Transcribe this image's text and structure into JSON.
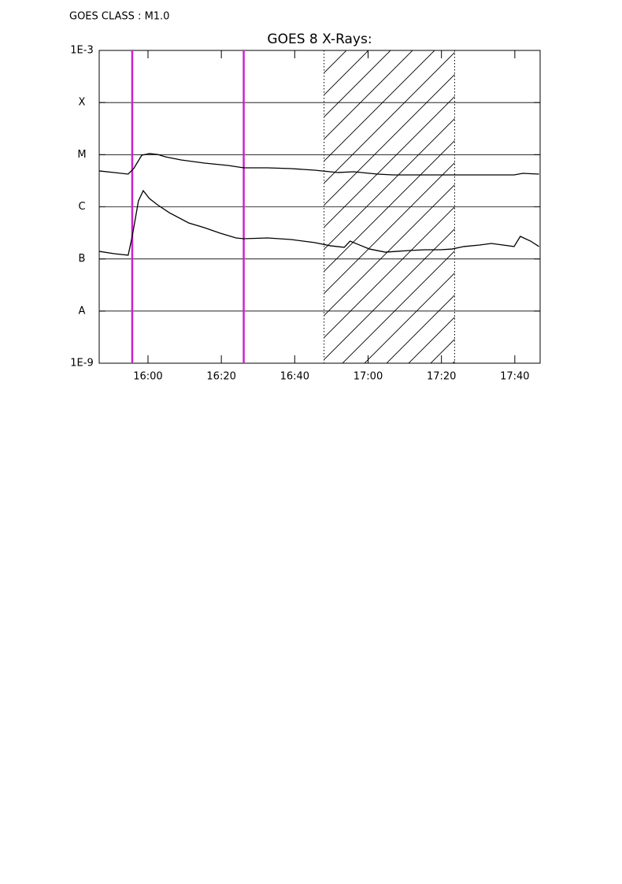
{
  "chart_data": {
    "type": "line",
    "annotation": "GOES CLASS : M1.0",
    "title": "GOES 8 X-Rays:",
    "log_y": true,
    "grid": true,
    "xlim": [
      946.7,
      1066.9
    ],
    "xticks": [
      {
        "value": 960,
        "label": "16:00"
      },
      {
        "value": 980,
        "label": "16:20"
      },
      {
        "value": 1000,
        "label": "16:40"
      },
      {
        "value": 1020,
        "label": "17:00"
      },
      {
        "value": 1040,
        "label": "17:20"
      },
      {
        "value": 1060,
        "label": "17:40"
      }
    ],
    "ylim": [
      1e-09,
      0.001
    ],
    "yticks": [
      {
        "value": 1e-09,
        "label": "1E-9"
      },
      {
        "value": 1e-08,
        "label": "A"
      },
      {
        "value": 1e-07,
        "label": "B"
      },
      {
        "value": 1e-06,
        "label": "C"
      },
      {
        "value": 1e-05,
        "label": "M"
      },
      {
        "value": 0.0001,
        "label": "X"
      },
      {
        "value": 0.001,
        "label": "1E-3"
      }
    ],
    "markers": {
      "color": "#cc22cc",
      "x": [
        955.7,
        986.1
      ]
    },
    "shaded": {
      "x": [
        1008.0,
        1043.6
      ]
    },
    "series": [
      {
        "color": "#000000",
        "x": [
          946.7,
          950.8,
          954.6,
          956.1,
          958.3,
          960.4,
          962.6,
          964.7,
          969.0,
          975.4,
          981.8,
          986.1,
          992.6,
          999.0,
          1005.4,
          1011.8,
          1016.1,
          1022.6,
          1026.8,
          1033.3,
          1039.7,
          1046.1,
          1052.5,
          1059.8,
          1062.2,
          1066.6
        ],
        "values": [
          4.88e-06,
          4.55e-06,
          4.24e-06,
          5.41e-06,
          9.77e-06,
          1.05e-05,
          1.01e-05,
          9.12e-06,
          7.93e-06,
          6.9e-06,
          6.22e-06,
          5.6e-06,
          5.6e-06,
          5.41e-06,
          5.05e-06,
          4.55e-06,
          4.71e-06,
          4.24e-06,
          4.09e-06,
          4.09e-06,
          4.09e-06,
          4.09e-06,
          4.09e-06,
          4.09e-06,
          4.39e-06,
          4.24e-06
        ]
      },
      {
        "color": "#000000",
        "x": [
          946.7,
          950.8,
          954.6,
          955.7,
          957.4,
          958.7,
          960.4,
          962.6,
          965.8,
          971.1,
          975.4,
          979.7,
          984.0,
          986.1,
          992.6,
          999.0,
          1005.4,
          1009.7,
          1013.5,
          1015.1,
          1017.2,
          1020.4,
          1024.7,
          1031.1,
          1035.4,
          1039.7,
          1042.9,
          1046.1,
          1050.4,
          1053.6,
          1056.8,
          1059.8,
          1061.5,
          1064.3,
          1066.6
        ],
        "values": [
          1.4e-07,
          1.26e-07,
          1.18e-07,
          2.71e-07,
          1.3e-06,
          2.04e-06,
          1.44e-06,
          1.09e-06,
          7.71e-07,
          4.9e-07,
          3.98e-07,
          3.12e-07,
          2.53e-07,
          2.44e-07,
          2.53e-07,
          2.36e-07,
          2.06e-07,
          1.79e-07,
          1.67e-07,
          2.2e-07,
          1.91e-07,
          1.55e-07,
          1.35e-07,
          1.45e-07,
          1.5e-07,
          1.5e-07,
          1.55e-07,
          1.73e-07,
          1.85e-07,
          1.98e-07,
          1.85e-07,
          1.73e-07,
          2.71e-07,
          2.2e-07,
          1.73e-07
        ]
      }
    ]
  }
}
